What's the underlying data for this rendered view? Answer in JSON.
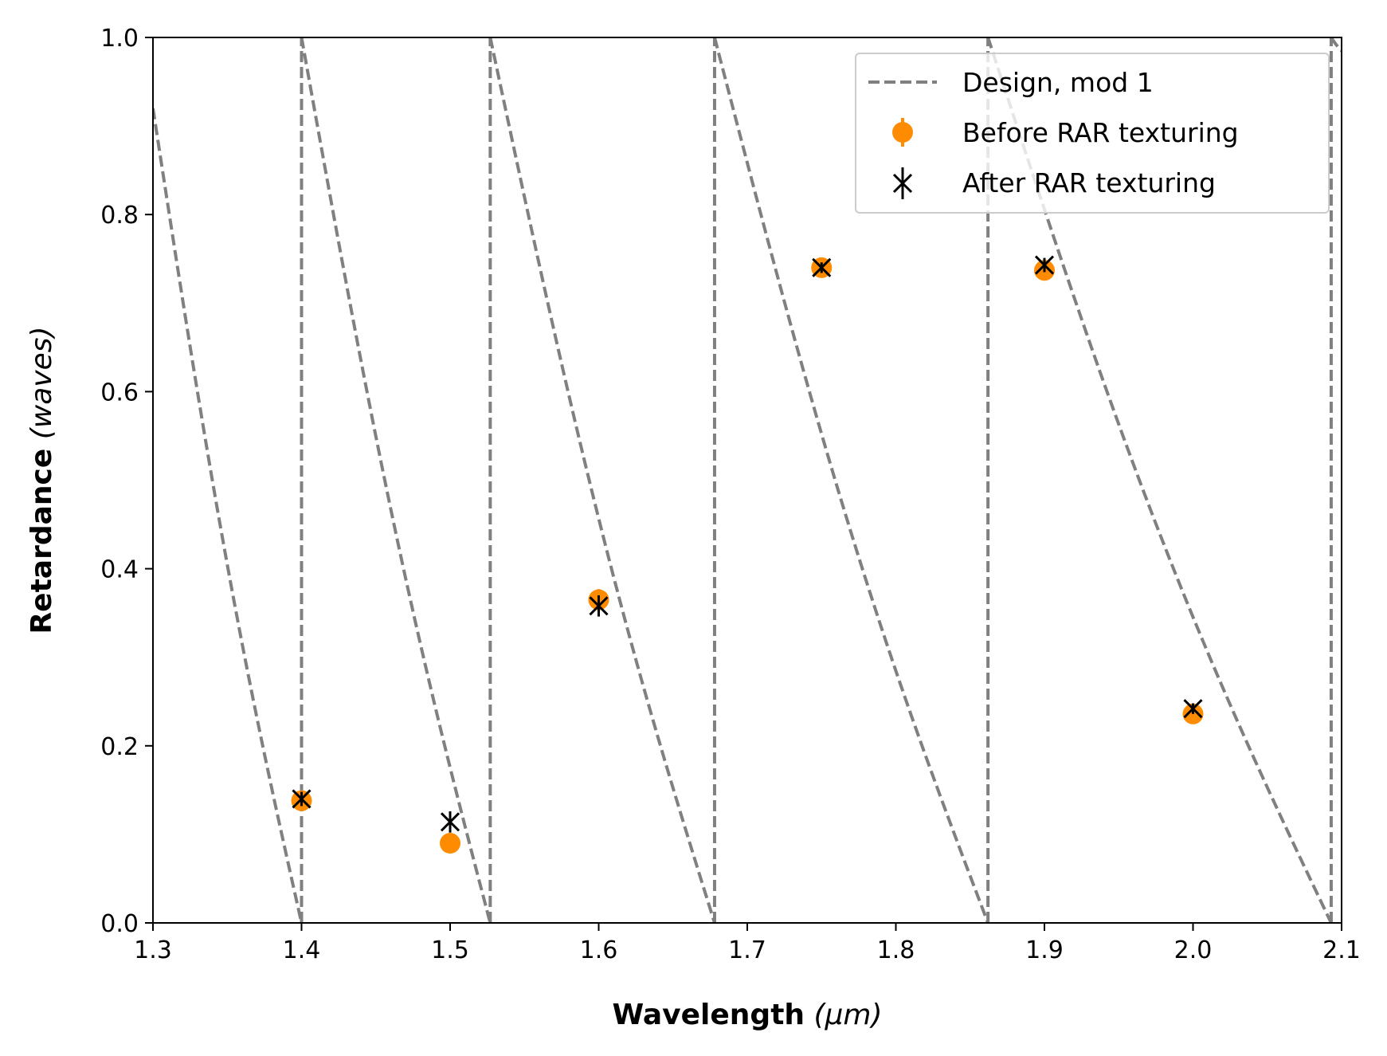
{
  "chart_data": {
    "type": "scatter",
    "xlabel_main": "Wavelength",
    "xlabel_unit": "(μm)",
    "ylabel_main": "Retardance",
    "ylabel_unit": "(waves)",
    "xlim": [
      1.3,
      2.1
    ],
    "ylim": [
      0.0,
      1.0
    ],
    "xticks": [
      1.3,
      1.4,
      1.5,
      1.6,
      1.7,
      1.8,
      1.9,
      2.0,
      2.1
    ],
    "xtick_labels": [
      "1.3",
      "1.4",
      "1.5",
      "1.6",
      "1.7",
      "1.8",
      "1.9",
      "2.0",
      "2.1"
    ],
    "yticks": [
      0.0,
      0.2,
      0.4,
      0.6,
      0.8,
      1.0
    ],
    "ytick_labels": [
      "0.0",
      "0.2",
      "0.4",
      "0.6",
      "0.8",
      "1.0"
    ],
    "grid": false,
    "legend_position": "top-right",
    "series": [
      {
        "name": "Design, mod 1",
        "style": "dashed-line",
        "color": "#808080",
        "segments": [
          [
            [
              1.3,
              0.92
            ],
            [
              1.4,
              0.0
            ]
          ],
          [
            [
              1.4,
              1.0
            ],
            [
              1.527,
              0.0
            ]
          ],
          [
            [
              1.527,
              1.0
            ],
            [
              1.678,
              0.0
            ]
          ],
          [
            [
              1.678,
              1.0
            ],
            [
              1.862,
              0.0
            ]
          ],
          [
            [
              1.862,
              1.0
            ],
            [
              2.093,
              0.0
            ]
          ],
          [
            [
              2.093,
              1.0
            ],
            [
              2.1,
              0.985
            ]
          ]
        ]
      },
      {
        "name": "Before RAR texturing",
        "style": "circle-marker",
        "color": "#ff8c00",
        "points": [
          {
            "x": 1.4,
            "y": 0.138,
            "err": 0.005
          },
          {
            "x": 1.5,
            "y": 0.09,
            "err": 0.004
          },
          {
            "x": 1.6,
            "y": 0.365,
            "err": 0.012
          },
          {
            "x": 1.75,
            "y": 0.74,
            "err": 0.006
          },
          {
            "x": 1.9,
            "y": 0.737,
            "err": 0.006
          },
          {
            "x": 2.0,
            "y": 0.236,
            "err": 0.004
          }
        ]
      },
      {
        "name": "After RAR texturing",
        "style": "x-marker",
        "color": "#000000",
        "points": [
          {
            "x": 1.4,
            "y": 0.14,
            "err": 0.008
          },
          {
            "x": 1.5,
            "y": 0.114,
            "err": 0.012
          },
          {
            "x": 1.6,
            "y": 0.358,
            "err": 0.012
          },
          {
            "x": 1.75,
            "y": 0.74,
            "err": 0.006
          },
          {
            "x": 1.9,
            "y": 0.743,
            "err": 0.008
          },
          {
            "x": 2.0,
            "y": 0.242,
            "err": 0.006
          }
        ]
      }
    ]
  }
}
